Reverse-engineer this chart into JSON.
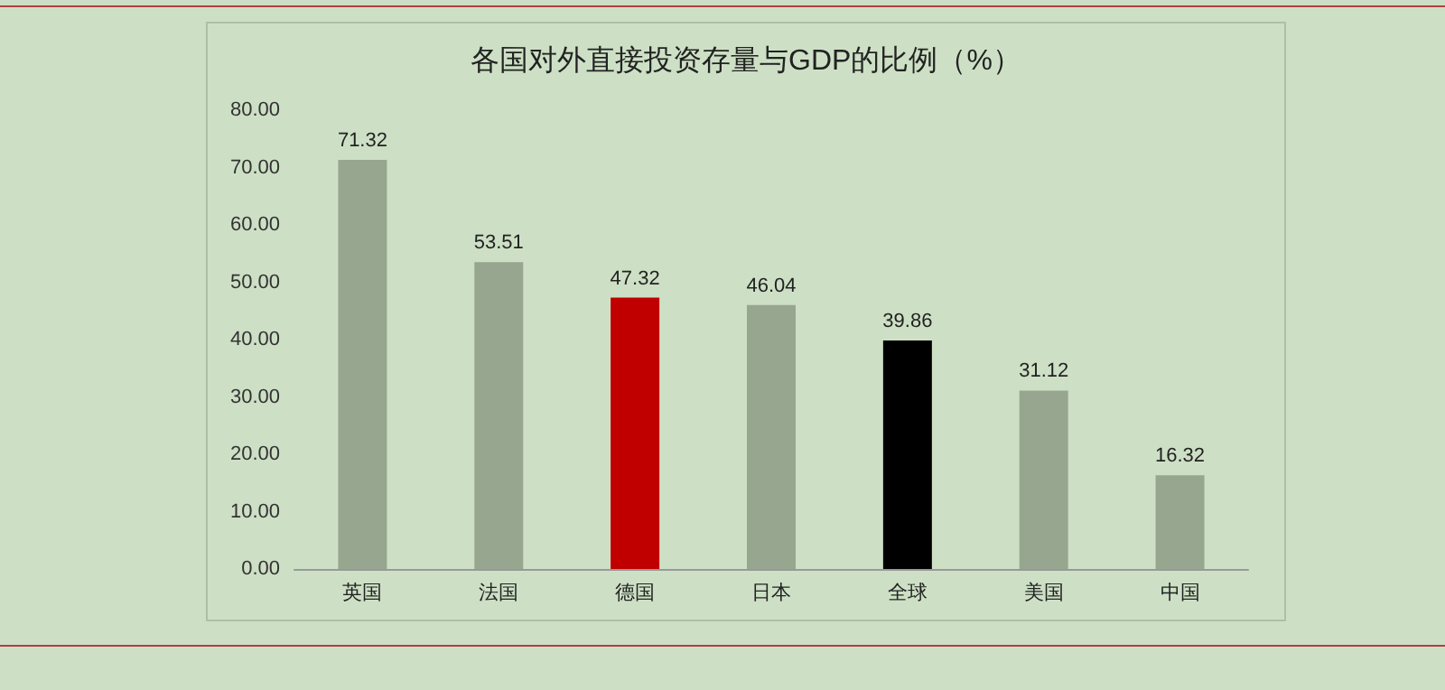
{
  "chart_data": {
    "type": "bar",
    "title": "各国对外直接投资存量与GDP的比例（%）",
    "categories": [
      "英国",
      "法国",
      "德国",
      "日本",
      "全球",
      "美国",
      "中国"
    ],
    "values": [
      71.32,
      53.51,
      47.32,
      46.04,
      39.86,
      31.12,
      16.32
    ],
    "colors": [
      "#97a78f",
      "#97a78f",
      "#c00000",
      "#97a78f",
      "#000000",
      "#97a78f",
      "#97a78f"
    ],
    "ylim": [
      0,
      80
    ],
    "yticks": [
      {
        "value": 0,
        "label": "0.00"
      },
      {
        "value": 10,
        "label": "10.00"
      },
      {
        "value": 20,
        "label": "20.00"
      },
      {
        "value": 30,
        "label": "30.00"
      },
      {
        "value": 40,
        "label": "40.00"
      },
      {
        "value": 50,
        "label": "50.00"
      },
      {
        "value": 60,
        "label": "60.00"
      },
      {
        "value": 70,
        "label": "70.00"
      },
      {
        "value": 80,
        "label": "80.00"
      }
    ],
    "grid": false,
    "data_labels": true
  }
}
